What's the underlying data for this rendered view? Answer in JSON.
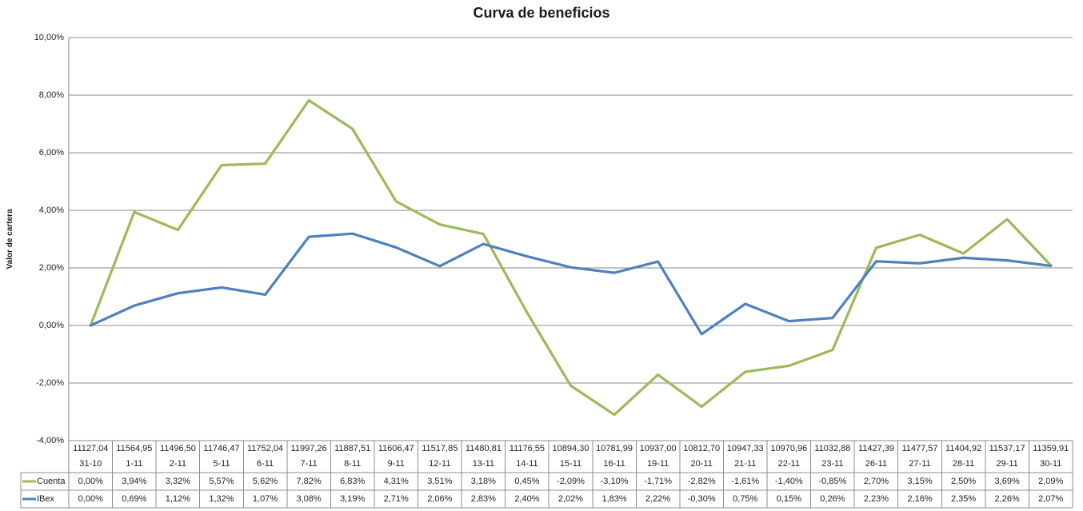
{
  "chart_data": {
    "type": "line",
    "title": "Curva de beneficios",
    "xlabel": "",
    "ylabel": "Valor de cartera",
    "ylim": [
      -4,
      10
    ],
    "y_tick_step": 2,
    "y_tick_format": "percent-comma-2dec",
    "grid": "horizontal-only",
    "legend_position": "table-left-bottom",
    "categories": [
      "31-10",
      "1-11",
      "2-11",
      "5-11",
      "6-11",
      "7-11",
      "8-11",
      "9-11",
      "12-11",
      "13-11",
      "14-11",
      "15-11",
      "16-11",
      "19-11",
      "20-11",
      "21-11",
      "22-11",
      "23-11",
      "26-11",
      "27-11",
      "28-11",
      "29-11",
      "30-11"
    ],
    "ibex_index_values": [
      "11127,04",
      "11564,95",
      "11496,50",
      "11746,47",
      "11752,04",
      "11997,26",
      "11887,51",
      "11606,47",
      "11517,85",
      "11480,81",
      "11176,55",
      "10894,30",
      "10781,99",
      "10937,00",
      "10812,70",
      "10947,33",
      "10970,96",
      "11032,88",
      "11427,39",
      "11477,57",
      "11404,92",
      "11537,17",
      "11359,91"
    ],
    "series": [
      {
        "name": "Cuenta",
        "color": "#9BBB59",
        "values": [
          0.0,
          3.94,
          3.32,
          5.57,
          5.62,
          7.82,
          6.83,
          4.31,
          3.51,
          3.18,
          0.45,
          -2.09,
          -3.1,
          -1.71,
          -2.82,
          -1.61,
          -1.4,
          -0.85,
          2.7,
          3.15,
          2.5,
          3.69,
          2.09
        ]
      },
      {
        "name": "IBex",
        "color": "#4F81BD",
        "values": [
          0.0,
          0.69,
          1.12,
          1.32,
          1.07,
          3.08,
          3.19,
          2.71,
          2.06,
          2.83,
          2.4,
          2.02,
          1.83,
          2.22,
          -0.3,
          0.75,
          0.15,
          0.26,
          2.23,
          2.16,
          2.35,
          2.26,
          2.07
        ]
      }
    ],
    "colors": {
      "gridline": "#898989",
      "axis_line": "#898989",
      "table_border": "#8c8c8c",
      "text": "#1f1f1f"
    }
  }
}
